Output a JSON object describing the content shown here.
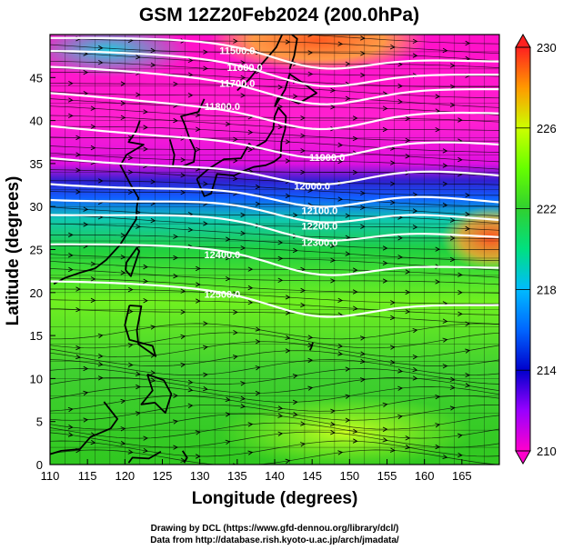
{
  "chart_data": {
    "type": "heatmap",
    "title": "GSM 12Z20Feb2024 (200.0hPa)",
    "xlabel": "Longitude (degrees)",
    "ylabel": "Latitude  (degrees)",
    "xlim": [
      110,
      170
    ],
    "ylim": [
      0,
      50
    ],
    "xticks": [
      110,
      115,
      120,
      125,
      130,
      135,
      140,
      145,
      150,
      155,
      160,
      165
    ],
    "yticks": [
      0,
      5,
      10,
      15,
      20,
      25,
      30,
      35,
      40,
      45
    ],
    "grid": true,
    "colorbar": {
      "min": 210,
      "max": 230,
      "ticks": [
        210,
        214,
        218,
        222,
        226,
        230
      ],
      "colors": [
        "#ff00cc",
        "#9900ff",
        "#0000cc",
        "#0099ff",
        "#00e0d0",
        "#00e040",
        "#66ff00",
        "#ccff00",
        "#ffcc00",
        "#ff6600",
        "#ff2020"
      ]
    },
    "contours": [
      {
        "label": "11500.0",
        "lat": 47.2,
        "label_lon": 135.0
      },
      {
        "label": "11600.0",
        "lat": 45.4,
        "label_lon": 136.0
      },
      {
        "label": "11700.0",
        "lat": 43.4,
        "label_lon": 135.0
      },
      {
        "label": "11800.0",
        "lat": 40.4,
        "label_lon": 133.0
      },
      {
        "label": "11900.0",
        "lat": 36.8,
        "label_lon": 147.0
      },
      {
        "label": "12000.0",
        "lat": 33.4,
        "label_lon": 145.0
      },
      {
        "label": "12100.0",
        "lat": 30.6,
        "label_lon": 146.0
      },
      {
        "label": "12200.0",
        "lat": 28.8,
        "label_lon": 146.0
      },
      {
        "label": "12300.0",
        "lat": 26.9,
        "label_lon": 146.0
      },
      {
        "label": "12400.0",
        "lat": 23.2,
        "label_lon": 133.0
      },
      {
        "label": "12500.0",
        "lat": 18.6,
        "label_lon": 133.0
      }
    ]
  },
  "footer": {
    "line1": "Drawing by DCL (https://www.gfd-dennou.org/library/dcl/)",
    "line2": "Data from http://database.rish.kyoto-u.ac.jp/arch/jmadata/"
  }
}
